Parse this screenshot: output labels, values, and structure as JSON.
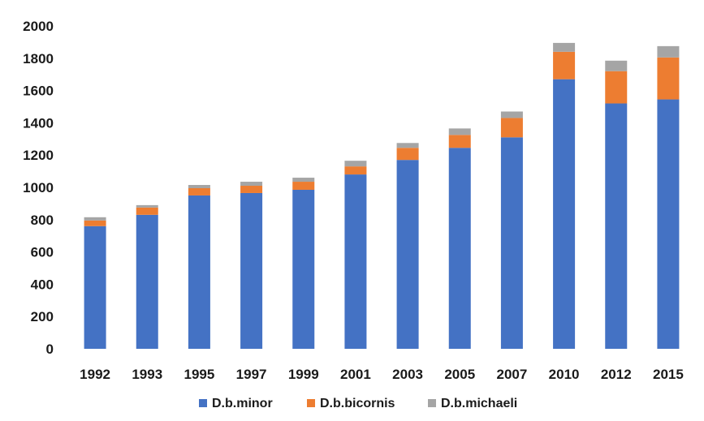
{
  "chart_data": {
    "type": "bar",
    "stacked": true,
    "categories": [
      "1992",
      "1993",
      "1995",
      "1997",
      "1999",
      "2001",
      "2003",
      "2005",
      "2007",
      "2010",
      "2012",
      "2015"
    ],
    "series": [
      {
        "name": "D.b.minor",
        "color": "#4472c4",
        "values": [
          760,
          830,
          950,
          965,
          985,
          1080,
          1170,
          1245,
          1310,
          1670,
          1520,
          1545
        ]
      },
      {
        "name": "D.b.bicornis",
        "color": "#ed7d31",
        "values": [
          35,
          45,
          45,
          45,
          50,
          50,
          75,
          80,
          120,
          170,
          200,
          260
        ]
      },
      {
        "name": "D.b.michaeli",
        "color": "#a5a5a5",
        "values": [
          20,
          15,
          20,
          25,
          25,
          35,
          30,
          40,
          40,
          55,
          65,
          70
        ]
      }
    ],
    "ylim": [
      0,
      2000
    ],
    "yticks": [
      "0",
      "200",
      "400",
      "600",
      "800",
      "1000",
      "1200",
      "1400",
      "1600",
      "1800",
      "2000"
    ],
    "grid": false,
    "legend_position": "bottom"
  }
}
